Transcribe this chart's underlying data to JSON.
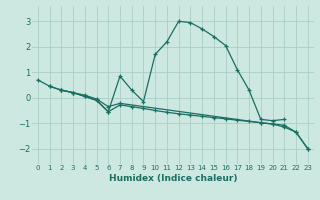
{
  "title": "",
  "xlabel": "Humidex (Indice chaleur)",
  "ylabel": "",
  "background_color": "#cce8e0",
  "grid_color": "#aacfc8",
  "line_color": "#1a6e62",
  "xlim": [
    -0.5,
    23.5
  ],
  "ylim": [
    -2.6,
    3.6
  ],
  "xticks": [
    0,
    1,
    2,
    3,
    4,
    5,
    6,
    7,
    8,
    9,
    10,
    11,
    12,
    13,
    14,
    15,
    16,
    17,
    18,
    19,
    20,
    21,
    22,
    23
  ],
  "yticks": [
    -2,
    -1,
    0,
    1,
    2,
    3
  ],
  "curve1_x": [
    0,
    1,
    2,
    3,
    4,
    5,
    6,
    7,
    8,
    9,
    10,
    11,
    12,
    13,
    14,
    15,
    16,
    17,
    18,
    19,
    20,
    21
  ],
  "curve1_y": [
    0.7,
    0.45,
    0.3,
    0.2,
    0.05,
    -0.1,
    -0.55,
    0.85,
    0.3,
    -0.15,
    1.7,
    2.2,
    3.0,
    2.95,
    2.7,
    2.4,
    2.05,
    1.1,
    0.3,
    -0.85,
    -0.9,
    -0.85
  ],
  "curve2_x": [
    1,
    2,
    3,
    4,
    5,
    6,
    7,
    8,
    9,
    10,
    11,
    12,
    13,
    14,
    15,
    16,
    17,
    18,
    19,
    20,
    21,
    22,
    23
  ],
  "curve2_y": [
    0.45,
    0.3,
    0.2,
    0.05,
    -0.1,
    -0.55,
    -0.28,
    -0.35,
    -0.42,
    -0.5,
    -0.57,
    -0.63,
    -0.68,
    -0.73,
    -0.78,
    -0.83,
    -0.88,
    -0.93,
    -0.98,
    -1.03,
    -1.08,
    -1.35,
    -2.0
  ],
  "curve3_x": [
    2,
    3,
    4,
    5,
    6,
    7,
    19,
    20,
    21,
    22,
    23
  ],
  "curve3_y": [
    0.3,
    0.2,
    0.1,
    -0.05,
    -0.35,
    -0.22,
    -0.98,
    -1.03,
    -1.15,
    -1.35,
    -2.0
  ]
}
